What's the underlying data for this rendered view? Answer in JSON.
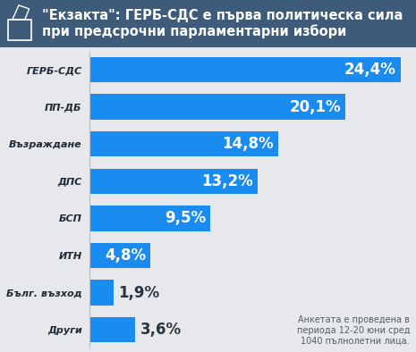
{
  "chart_data": {
    "type": "bar",
    "orientation": "horizontal",
    "title": "\"Екзакта\": ГЕРБ-СДС е първа политическа сила при предсрочни парламентарни избори",
    "categories": [
      "ГЕРБ-СДС",
      "ПП-ДБ",
      "Възраждане",
      "ДПС",
      "БСП",
      "ИТН",
      "Бълг. възход",
      "Други"
    ],
    "values": [
      24.4,
      20.1,
      14.8,
      13.2,
      9.5,
      4.8,
      1.9,
      3.6
    ],
    "value_labels": [
      "24,4%",
      "20,1%",
      "14,8%",
      "13,2%",
      "9,5%",
      "4,8%",
      "1,9%",
      "3,6%"
    ],
    "data_labels": true,
    "tick_labels": "y",
    "color": "#1a8cf0",
    "annotation": "Анкетата е проведена в периода 12-20 юни сред 1040 пълнолетни лица."
  }
}
